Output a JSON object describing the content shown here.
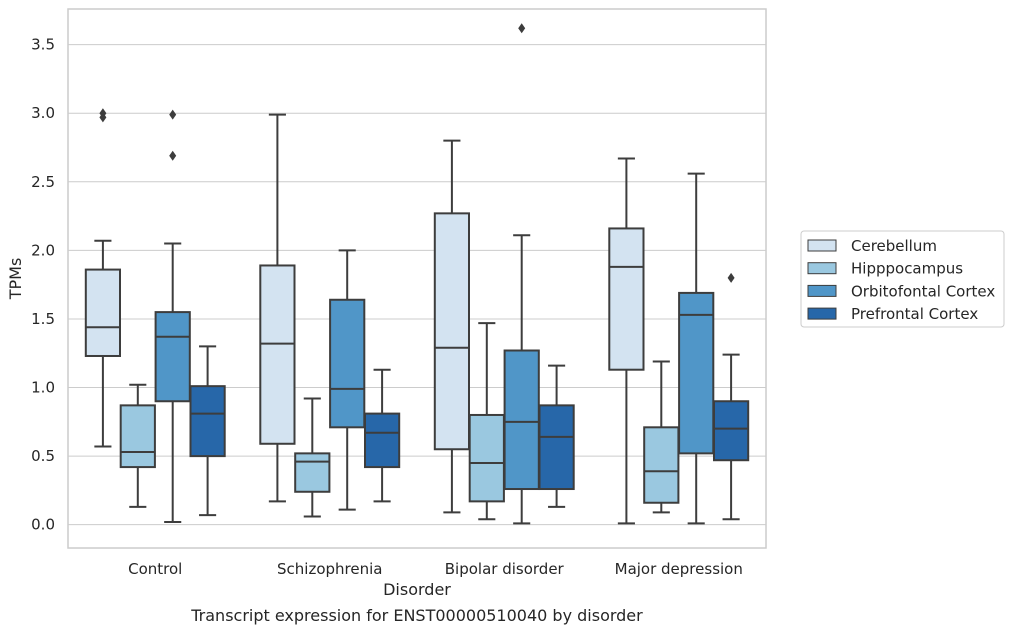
{
  "caption": "Transcript expression for ENST00000510040 by disorder",
  "chart_data": {
    "type": "boxplot",
    "xlabel": "Disorder",
    "ylabel": "TPMs",
    "ylim": [
      -0.17,
      3.76
    ],
    "yticks": [
      "0.0",
      "0.5",
      "1.0",
      "1.5",
      "2.0",
      "2.5",
      "3.0",
      "3.5"
    ],
    "grid": true,
    "legend_position": "right",
    "categories": [
      "Control",
      "Schizophrenia",
      "Bipolar disorder",
      "Major depression"
    ],
    "series": [
      {
        "name": "Cerebellum",
        "color": "#d3e3f1",
        "boxes": [
          {
            "whislo": 0.57,
            "q1": 1.23,
            "med": 1.44,
            "q3": 1.86,
            "whishi": 2.07,
            "fliers": [
              2.97,
              3.0
            ]
          },
          {
            "whislo": 0.17,
            "q1": 0.59,
            "med": 1.32,
            "q3": 1.89,
            "whishi": 2.99,
            "fliers": []
          },
          {
            "whislo": 0.09,
            "q1": 0.55,
            "med": 1.29,
            "q3": 2.27,
            "whishi": 2.8,
            "fliers": []
          },
          {
            "whislo": 0.01,
            "q1": 1.13,
            "med": 1.88,
            "q3": 2.16,
            "whishi": 2.67,
            "fliers": []
          }
        ]
      },
      {
        "name": "Hipppocampus",
        "color": "#9ac8e0",
        "boxes": [
          {
            "whislo": 0.13,
            "q1": 0.42,
            "med": 0.53,
            "q3": 0.87,
            "whishi": 1.02,
            "fliers": []
          },
          {
            "whislo": 0.06,
            "q1": 0.24,
            "med": 0.46,
            "q3": 0.52,
            "whishi": 0.92,
            "fliers": []
          },
          {
            "whislo": 0.04,
            "q1": 0.17,
            "med": 0.45,
            "q3": 0.8,
            "whishi": 1.47,
            "fliers": []
          },
          {
            "whislo": 0.09,
            "q1": 0.16,
            "med": 0.39,
            "q3": 0.71,
            "whishi": 1.19,
            "fliers": []
          }
        ]
      },
      {
        "name": "Orbitofontal Cortex",
        "color": "#5096c8",
        "boxes": [
          {
            "whislo": 0.02,
            "q1": 0.9,
            "med": 1.37,
            "q3": 1.55,
            "whishi": 2.05,
            "fliers": [
              2.69,
              2.99
            ]
          },
          {
            "whislo": 0.11,
            "q1": 0.71,
            "med": 0.99,
            "q3": 1.64,
            "whishi": 2.0,
            "fliers": []
          },
          {
            "whislo": 0.01,
            "q1": 0.26,
            "med": 0.75,
            "q3": 1.27,
            "whishi": 2.11,
            "fliers": [
              3.62
            ]
          },
          {
            "whislo": 0.01,
            "q1": 0.52,
            "med": 1.53,
            "q3": 1.69,
            "whishi": 2.56,
            "fliers": []
          }
        ]
      },
      {
        "name": "Prefrontal Cortex",
        "color": "#2767a9",
        "boxes": [
          {
            "whislo": 0.07,
            "q1": 0.5,
            "med": 0.81,
            "q3": 1.01,
            "whishi": 1.3,
            "fliers": []
          },
          {
            "whislo": 0.17,
            "q1": 0.42,
            "med": 0.67,
            "q3": 0.81,
            "whishi": 1.13,
            "fliers": []
          },
          {
            "whislo": 0.13,
            "q1": 0.26,
            "med": 0.64,
            "q3": 0.87,
            "whishi": 1.16,
            "fliers": []
          },
          {
            "whislo": 0.04,
            "q1": 0.47,
            "med": 0.7,
            "q3": 0.9,
            "whishi": 1.24,
            "fliers": [
              1.8
            ]
          }
        ]
      }
    ]
  }
}
